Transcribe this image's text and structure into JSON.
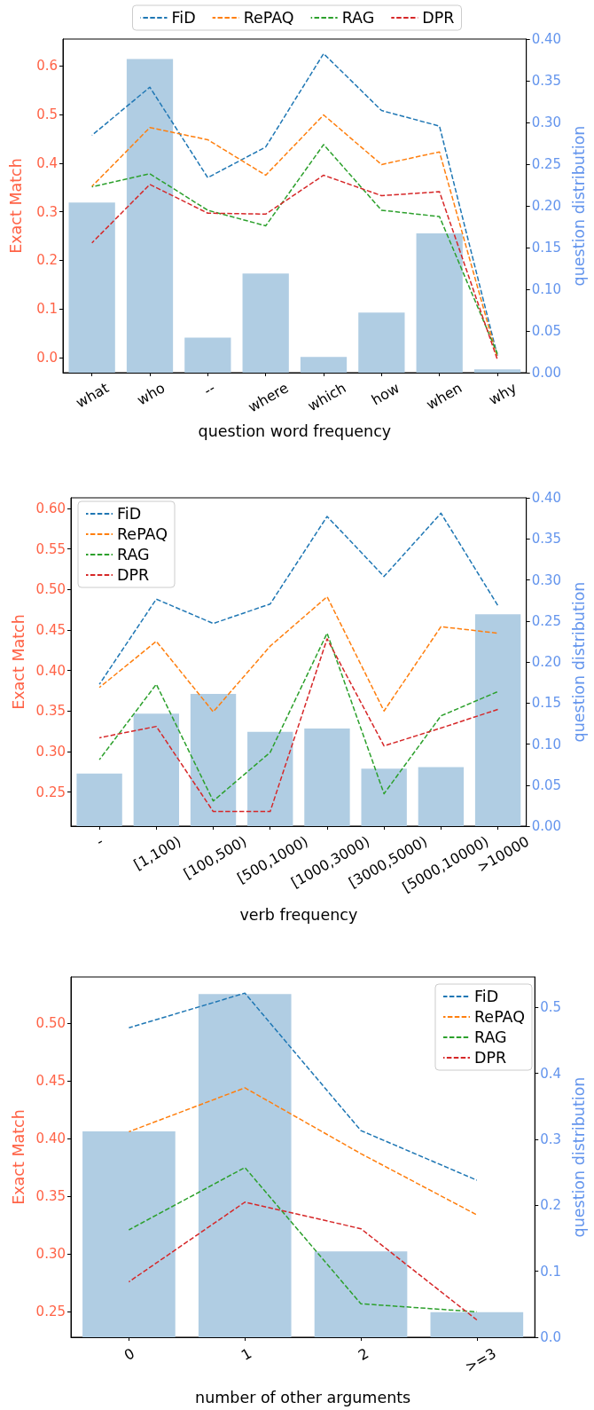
{
  "chart_data": [
    {
      "type": "line",
      "xlabel": "question word frequency",
      "ylabel": "Exact Match",
      "y2label": "question distribution",
      "categories": [
        "what",
        "who",
        "--",
        "where",
        "which",
        "how",
        "when",
        "why"
      ],
      "series": [
        {
          "type": "bar",
          "axis": "y2",
          "color": "#b0cde3",
          "values": [
            0.204,
            0.376,
            0.042,
            0.119,
            0.019,
            0.072,
            0.167,
            0.004
          ]
        },
        {
          "name": "FiD",
          "color": "#1f77b4",
          "values": [
            0.457,
            0.556,
            0.37,
            0.433,
            0.625,
            0.508,
            0.476,
            0.004
          ]
        },
        {
          "name": "RePAQ",
          "color": "#ff7f0e",
          "values": [
            0.352,
            0.473,
            0.448,
            0.375,
            0.499,
            0.397,
            0.423,
            0.0
          ]
        },
        {
          "name": "RAG",
          "color": "#2ca02c",
          "values": [
            0.351,
            0.378,
            0.303,
            0.271,
            0.438,
            0.303,
            0.29,
            0.008
          ]
        },
        {
          "name": "DPR",
          "color": "#d62728",
          "values": [
            0.236,
            0.356,
            0.297,
            0.295,
            0.375,
            0.333,
            0.341,
            -0.004
          ]
        }
      ],
      "ylim": [
        -0.031,
        0.655
      ],
      "yticks": [
        {
          "value": 0,
          "label": "0.0"
        },
        0.1,
        0.2,
        0.3,
        0.4,
        0.5,
        0.6
      ],
      "y2lim": [
        0,
        0.4
      ],
      "y2ticks": [
        {
          "value": 0,
          "label": "0.00"
        },
        0.05,
        {
          "value": 0.1,
          "label": "0.10"
        },
        0.15,
        {
          "value": 0.2,
          "label": "0.20"
        },
        0.25,
        {
          "value": 0.3,
          "label": "0.30"
        },
        0.35,
        {
          "value": 0.4,
          "label": "0.40"
        }
      ],
      "legend": "top",
      "line_style": "dashed",
      "grid": false
    },
    {
      "type": "line",
      "xlabel": "verb frequency",
      "ylabel": "Exact Match",
      "y2label": "question distribution",
      "categories": [
        "-",
        "[1,100)",
        "[100,500)",
        "[500,1000)",
        "[1000,3000)",
        "[3000,5000)",
        "[5000,10000)",
        ">10000"
      ],
      "series": [
        {
          "type": "bar",
          "axis": "y2",
          "color": "#b0cde3",
          "values": [
            0.064,
            0.137,
            0.161,
            0.115,
            0.119,
            0.07,
            0.072,
            0.258
          ]
        },
        {
          "name": "FiD",
          "color": "#1f77b4",
          "values": [
            0.383,
            0.488,
            0.458,
            0.482,
            0.59,
            0.516,
            0.594,
            0.48
          ]
        },
        {
          "name": "RePAQ",
          "color": "#ff7f0e",
          "values": [
            0.379,
            0.436,
            0.349,
            0.43,
            0.491,
            0.35,
            0.454,
            0.446
          ]
        },
        {
          "name": "RAG",
          "color": "#2ca02c",
          "values": [
            0.29,
            0.383,
            0.239,
            0.299,
            0.446,
            0.248,
            0.344,
            0.374
          ]
        },
        {
          "name": "DPR",
          "color": "#d62728",
          "values": [
            0.317,
            0.331,
            0.226,
            0.226,
            0.439,
            0.307,
            0.329,
            0.352
          ]
        }
      ],
      "ylim": [
        0.208,
        0.613
      ],
      "yticks": [
        0.25,
        {
          "value": 0.3,
          "label": "0.30"
        },
        0.35,
        {
          "value": 0.4,
          "label": "0.40"
        },
        0.45,
        {
          "value": 0.5,
          "label": "0.50"
        },
        0.55,
        {
          "value": 0.6,
          "label": "0.60"
        }
      ],
      "y2lim": [
        0,
        0.4
      ],
      "y2ticks": [
        {
          "value": 0,
          "label": "0.00"
        },
        0.05,
        {
          "value": 0.1,
          "label": "0.10"
        },
        0.15,
        {
          "value": 0.2,
          "label": "0.20"
        },
        0.25,
        {
          "value": 0.3,
          "label": "0.30"
        },
        0.35,
        {
          "value": 0.4,
          "label": "0.40"
        }
      ],
      "legend": "top left",
      "line_style": "dashed",
      "grid": false
    },
    {
      "type": "line",
      "xlabel": "number of other arguments",
      "ylabel": "Exact Match",
      "y2label": "question distribution",
      "categories": [
        "0",
        "1",
        "2",
        ">=3"
      ],
      "series": [
        {
          "type": "bar",
          "axis": "y2",
          "color": "#b0cde3",
          "values": [
            0.312,
            0.52,
            0.13,
            0.038
          ]
        },
        {
          "name": "FiD",
          "color": "#1f77b4",
          "values": [
            0.496,
            0.526,
            0.407,
            0.364
          ]
        },
        {
          "name": "RePAQ",
          "color": "#ff7f0e",
          "values": [
            0.406,
            0.444,
            0.387,
            0.334
          ]
        },
        {
          "name": "RAG",
          "color": "#2ca02c",
          "values": [
            0.321,
            0.375,
            0.257,
            0.25
          ]
        },
        {
          "name": "DPR",
          "color": "#d62728",
          "values": [
            0.276,
            0.345,
            0.322,
            0.243
          ]
        }
      ],
      "ylim": [
        0.228,
        0.54
      ],
      "yticks": [
        0.25,
        {
          "value": 0.3,
          "label": "0.30"
        },
        0.35,
        {
          "value": 0.4,
          "label": "0.40"
        },
        0.45,
        {
          "value": 0.5,
          "label": "0.50"
        }
      ],
      "y2lim": [
        0,
        0.546
      ],
      "y2ticks": [
        {
          "value": 0,
          "label": "0.0"
        },
        0.1,
        0.2,
        0.3,
        0.4,
        0.5
      ],
      "legend": "top right",
      "line_style": "dashed",
      "grid": false
    }
  ]
}
